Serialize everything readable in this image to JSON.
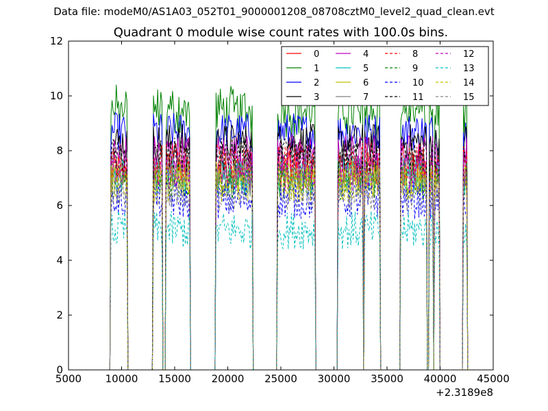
{
  "supertitle": "Data file: modeM0/AS1A03_052T01_9000001208_08708cztM0_level2_quad_clean.evt",
  "chart_data": {
    "type": "line",
    "title": "Quadrant 0 module wise count rates with 100.0s bins.",
    "xlabel": "",
    "ylabel": "",
    "x_offset_label": "+2.3189e8",
    "xlim": [
      5000,
      45000
    ],
    "ylim": [
      0,
      12
    ],
    "x_ticks": [
      "5000",
      "10000",
      "15000",
      "20000",
      "25000",
      "30000",
      "35000",
      "40000",
      "45000"
    ],
    "y_ticks": [
      "0",
      "2",
      "4",
      "6",
      "8",
      "10",
      "12"
    ],
    "grid": false,
    "legend_position": "top-right",
    "legend_columns": 4,
    "segments": [
      [
        9000,
        10500
      ],
      [
        13000,
        13800
      ],
      [
        14200,
        16400
      ],
      [
        18900,
        22300
      ],
      [
        24700,
        26600
      ],
      [
        26700,
        28200
      ],
      [
        30400,
        32700
      ],
      [
        32900,
        34300
      ],
      [
        36300,
        38700
      ],
      [
        39000,
        39300
      ],
      [
        39500,
        39900
      ],
      [
        42200,
        42500
      ]
    ],
    "series": [
      {
        "name": "0",
        "color": "#ff0000",
        "dash": "solid",
        "level": 7.3
      },
      {
        "name": "1",
        "color": "#008000",
        "dash": "solid",
        "level": 9.3
      },
      {
        "name": "2",
        "color": "#0000ff",
        "dash": "solid",
        "level": 8.7
      },
      {
        "name": "3",
        "color": "#000000",
        "dash": "solid",
        "level": 8.3
      },
      {
        "name": "4",
        "color": "#bf00bf",
        "dash": "solid",
        "level": 7.9
      },
      {
        "name": "5",
        "color": "#00bfbf",
        "dash": "solid",
        "level": 7.1
      },
      {
        "name": "6",
        "color": "#bfbf00",
        "dash": "solid",
        "level": 7.0
      },
      {
        "name": "7",
        "color": "#808080",
        "dash": "solid",
        "level": 7.4
      },
      {
        "name": "8",
        "color": "#ff0000",
        "dash": "dashed",
        "level": 7.6
      },
      {
        "name": "9",
        "color": "#008000",
        "dash": "dashed",
        "level": 6.9
      },
      {
        "name": "10",
        "color": "#0000ff",
        "dash": "dashed",
        "level": 6.2
      },
      {
        "name": "11",
        "color": "#000000",
        "dash": "dashed",
        "level": 7.8
      },
      {
        "name": "12",
        "color": "#bf00bf",
        "dash": "dashed",
        "level": 7.2
      },
      {
        "name": "13",
        "color": "#00bfbf",
        "dash": "dashed",
        "level": 5.1
      },
      {
        "name": "14",
        "color": "#bfbf00",
        "dash": "dashed",
        "level": 6.8
      },
      {
        "name": "15",
        "color": "#808080",
        "dash": "dashed",
        "level": 6.5
      }
    ]
  }
}
